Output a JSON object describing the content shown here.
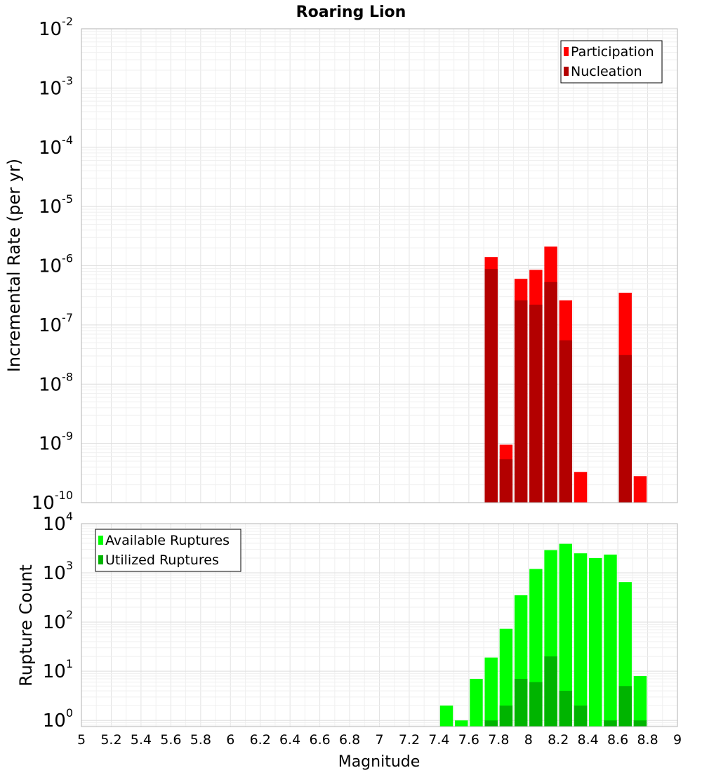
{
  "chart_data": {
    "type": "bar",
    "title": "Roaring Lion",
    "xlabel": "Magnitude",
    "xlim": [
      5,
      9
    ],
    "x_ticks": [
      "5",
      "5.2",
      "5.4",
      "5.6",
      "5.8",
      "6",
      "6.2",
      "6.4",
      "6.6",
      "6.8",
      "7",
      "7.2",
      "7.4",
      "7.6",
      "7.8",
      "8",
      "8.2",
      "8.4",
      "8.6",
      "8.8",
      "9"
    ],
    "panels": [
      {
        "ylabel": "Incremental Rate (per yr)",
        "yscale": "log",
        "ylim": [
          1e-10,
          0.01
        ],
        "y_tick_exponents": [
          "-10",
          "-9",
          "-8",
          "-7",
          "-6",
          "-5",
          "-4",
          "-3",
          "-2"
        ],
        "legend_position": "top-right",
        "series": [
          {
            "name": "Participation",
            "color": "#ff0000",
            "x": [
              7.75,
              7.85,
              7.95,
              8.05,
              8.15,
              8.25,
              8.35,
              8.65,
              8.75
            ],
            "values": [
              1.4e-06,
              9.5e-10,
              6e-07,
              8.5e-07,
              2.1e-06,
              2.6e-07,
              3.3e-10,
              3.5e-07,
              2.8e-10
            ]
          },
          {
            "name": "Nucleation",
            "color": "#b30000",
            "x": [
              7.75,
              7.85,
              7.95,
              8.05,
              8.15,
              8.25,
              8.65
            ],
            "values": [
              8.8e-07,
              5.4e-10,
              2.6e-07,
              2.2e-07,
              5.3e-07,
              5.5e-08,
              3.1e-08
            ]
          }
        ]
      },
      {
        "ylabel": "Rupture Count",
        "yscale": "log",
        "ylim": [
          0.75,
          10000
        ],
        "y_tick_exponents": [
          "0",
          "1",
          "2",
          "3",
          "4"
        ],
        "legend_position": "top-left",
        "series": [
          {
            "name": "Available Ruptures",
            "color": "#00ff00",
            "x": [
              7.45,
              7.55,
              7.65,
              7.75,
              7.85,
              7.95,
              8.05,
              8.15,
              8.25,
              8.35,
              8.45,
              8.55,
              8.65,
              8.75
            ],
            "values": [
              2,
              1,
              7,
              19,
              73,
              350,
              1200,
              2900,
              3900,
              2500,
              2000,
              2350,
              650,
              8
            ]
          },
          {
            "name": "Utilized Ruptures",
            "color": "#00b400",
            "x": [
              7.75,
              7.85,
              7.95,
              8.05,
              8.15,
              8.25,
              8.35,
              8.55,
              8.65,
              8.75
            ],
            "values": [
              1,
              2,
              7,
              6,
              20,
              4,
              2,
              1,
              5,
              1
            ]
          }
        ]
      }
    ]
  }
}
